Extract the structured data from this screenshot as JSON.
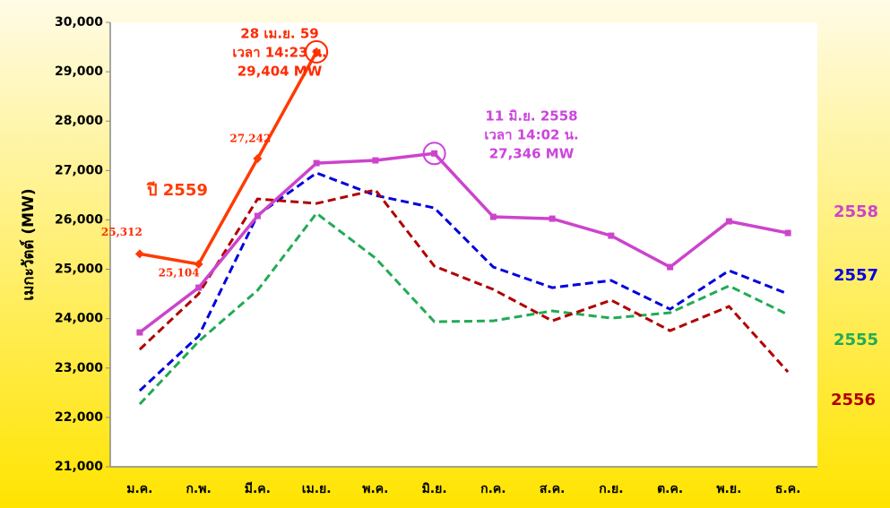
{
  "chart_data": {
    "type": "line",
    "y_label": "เมกะวัตต์ (MW)",
    "categories": [
      "ม.ค.",
      "ก.พ.",
      "มี.ค.",
      "เม.ย.",
      "พ.ค.",
      "มิ.ย.",
      "ก.ค.",
      "ส.ค.",
      "ก.ย.",
      "ต.ค.",
      "พ.ย.",
      "ธ.ค."
    ],
    "ylim": [
      21000,
      30000
    ],
    "yticks": [
      {
        "value": 21000,
        "label": "21,000"
      },
      {
        "value": 22000,
        "label": "22,000"
      },
      {
        "value": 23000,
        "label": "23,000"
      },
      {
        "value": 24000,
        "label": "24,000"
      },
      {
        "value": 25000,
        "label": "25,000"
      },
      {
        "value": 26000,
        "label": "26,000"
      },
      {
        "value": 27000,
        "label": "27,000"
      },
      {
        "value": 28000,
        "label": "28,000"
      },
      {
        "value": 29000,
        "label": "29,000"
      },
      {
        "value": 30000,
        "label": "30,000"
      }
    ],
    "series": [
      {
        "name": "ปี 2559",
        "color": "#ff3a00",
        "marker": "diamond",
        "dashed": false,
        "values": [
          25312,
          25104,
          27242,
          29404,
          null,
          null,
          null,
          null,
          null,
          null,
          null,
          null
        ],
        "value_labels": [
          "25,312",
          "25,104",
          "27,242",
          null,
          null,
          null,
          null,
          null,
          null,
          null,
          null,
          null
        ]
      },
      {
        "name": "2558",
        "color": "#cc44cc",
        "marker": "square",
        "dashed": false,
        "values": [
          23721,
          24628,
          26080,
          27150,
          27205,
          27346,
          26062,
          26025,
          25680,
          25045,
          25971,
          25735
        ]
      },
      {
        "name": "2557",
        "color": "#0000dd",
        "dashed": true,
        "values": [
          22541,
          23648,
          26098,
          26951,
          26497,
          26243,
          25045,
          24628,
          24773,
          24192,
          24973,
          24501
        ]
      },
      {
        "name": "2555",
        "color": "#22aa55",
        "dashed": true,
        "values": [
          22269,
          23539,
          24574,
          26134,
          25227,
          23938,
          23956,
          24156,
          24011,
          24120,
          24664,
          24083
        ]
      },
      {
        "name": "2556",
        "color": "#b00000",
        "dashed": true,
        "values": [
          23376,
          24501,
          26425,
          26334,
          26606,
          25064,
          24592,
          23956,
          24374,
          23757,
          24247,
          22922
        ]
      }
    ],
    "annotations": [
      {
        "series": 0,
        "index": 3,
        "color": "#ff2a00",
        "lines": [
          "28 เม.ย. 59",
          "เวลา 14:23 น.",
          "29,404 MW"
        ]
      },
      {
        "series": 1,
        "index": 5,
        "color": "#cc44dd",
        "lines": [
          "11 มิ.ย. 2558",
          "เวลา 14:02 น.",
          "27,346 MW"
        ]
      }
    ]
  }
}
